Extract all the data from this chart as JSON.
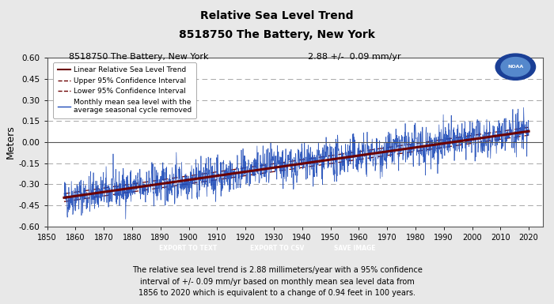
{
  "title_line1": "Relative Sea Level Trend",
  "title_line2": "8518750 The Battery, New York",
  "subtitle_left": "8518750 The Battery, New York",
  "subtitle_right": "2.88 +/-  0.09 mm/yr",
  "ylabel": "Meters",
  "year_start": 1856,
  "year_end": 2020,
  "xmin": 1850,
  "xmax": 2025,
  "ymin": -0.6,
  "ymax": 0.6,
  "trend_slope_mm_per_yr": 2.88,
  "trend_intercept": -0.395,
  "trend_color": "#6B0000",
  "ci_color": "#6B0000",
  "data_color": "#1E4BB8",
  "background_color": "#e8e8e8",
  "plot_bg_color": "#ffffff",
  "footer_text": "The relative sea level trend is 2.88 millimeters/year with a 95% confidence\ninterval of +/- 0.09 mm/yr based on monthly mean sea level data from\n1856 to 2020 which is equivalent to a change of 0.94 feet in 100 years.",
  "legend_entries": [
    "Linear Relative Sea Level Trend",
    "Upper 95% Confidence Interval",
    "Lower 95% Confidence Interval",
    "Monthly mean sea level with the\naverage seasonal cycle removed"
  ],
  "xticks": [
    1850,
    1860,
    1870,
    1880,
    1890,
    1900,
    1910,
    1920,
    1930,
    1940,
    1950,
    1960,
    1970,
    1980,
    1990,
    2000,
    2010,
    2020
  ],
  "yticks": [
    -0.6,
    -0.45,
    -0.3,
    -0.15,
    0.0,
    0.15,
    0.3,
    0.45,
    0.6
  ],
  "grid_color": "#999999",
  "button_color": "#1a1a8c",
  "button_text_color": "#ffffff",
  "button_labels": [
    "EXPORT TO TEXT",
    "EXPORT TO CSV",
    "SAVE IMAGE"
  ],
  "noise_seed": 42,
  "noise_std": 0.065
}
